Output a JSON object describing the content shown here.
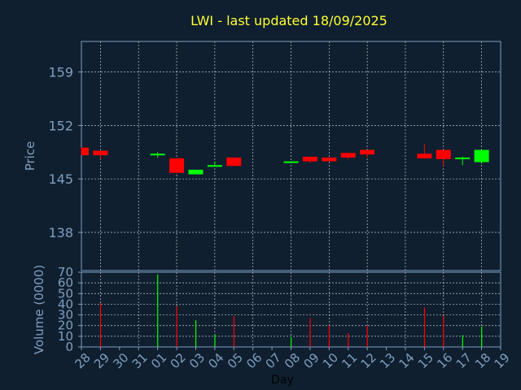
{
  "chart_data": [
    {
      "type": "candlestick",
      "title": "LWI - last updated 18/09/2025",
      "ylabel": "Price",
      "ylim": [
        133,
        163
      ],
      "yticks": [
        138,
        145,
        152,
        159
      ],
      "grid": true,
      "up_color": "#00ff00",
      "down_color": "#ff0000",
      "categories": [
        "28",
        "29",
        "30",
        "31",
        "01",
        "02",
        "03",
        "04",
        "05",
        "06",
        "07",
        "08",
        "09",
        "10",
        "11",
        "12",
        "13",
        "14",
        "15",
        "16",
        "17",
        "18",
        "19"
      ],
      "candles": [
        {
          "x": "28",
          "open": 149.1,
          "close": 148.1,
          "high": 149.1,
          "low": 148.1
        },
        {
          "x": "29",
          "open": 148.7,
          "close": 148.1,
          "high": 148.7,
          "low": 147.6
        },
        {
          "x": "01",
          "open": 148.1,
          "close": 148.3,
          "high": 148.5,
          "low": 147.8
        },
        {
          "x": "02",
          "open": 147.7,
          "close": 145.8,
          "high": 147.7,
          "low": 145.7
        },
        {
          "x": "03",
          "open": 145.6,
          "close": 146.2,
          "high": 146.2,
          "low": 145.6
        },
        {
          "x": "04",
          "open": 146.6,
          "close": 146.8,
          "high": 147.3,
          "low": 146.6
        },
        {
          "x": "05",
          "open": 147.8,
          "close": 146.7,
          "high": 147.8,
          "low": 146.7
        },
        {
          "x": "08",
          "open": 147.1,
          "close": 147.3,
          "high": 147.3,
          "low": 147.1
        },
        {
          "x": "09",
          "open": 147.9,
          "close": 147.3,
          "high": 147.9,
          "low": 147.1
        },
        {
          "x": "10",
          "open": 147.8,
          "close": 147.3,
          "high": 147.8,
          "low": 147.3
        },
        {
          "x": "11",
          "open": 148.4,
          "close": 147.8,
          "high": 148.4,
          "low": 147.6
        },
        {
          "x": "12",
          "open": 148.8,
          "close": 148.2,
          "high": 148.8,
          "low": 147.8
        },
        {
          "x": "15",
          "open": 148.3,
          "close": 147.7,
          "high": 149.6,
          "low": 147.7
        },
        {
          "x": "16",
          "open": 148.8,
          "close": 147.6,
          "high": 148.8,
          "low": 146.7
        },
        {
          "x": "17",
          "open": 147.6,
          "close": 147.8,
          "high": 147.9,
          "low": 146.8
        },
        {
          "x": "18",
          "open": 147.2,
          "close": 148.8,
          "high": 148.8,
          "low": 147.0
        }
      ]
    },
    {
      "type": "bar",
      "ylabel": "Volume (0000)",
      "xlabel": "Day",
      "ylim": [
        0,
        70
      ],
      "yticks": [
        0,
        10,
        20,
        30,
        40,
        50,
        60,
        70
      ],
      "grid": true,
      "categories": [
        "28",
        "29",
        "30",
        "31",
        "01",
        "02",
        "03",
        "04",
        "05",
        "06",
        "07",
        "08",
        "09",
        "10",
        "11",
        "12",
        "13",
        "14",
        "15",
        "16",
        "17",
        "18",
        "19"
      ],
      "bars": [
        {
          "x": "29",
          "value": 41,
          "direction": "down"
        },
        {
          "x": "01",
          "value": 68,
          "direction": "up"
        },
        {
          "x": "02",
          "value": 38,
          "direction": "down"
        },
        {
          "x": "03",
          "value": 25,
          "direction": "up"
        },
        {
          "x": "04",
          "value": 12,
          "direction": "up"
        },
        {
          "x": "05",
          "value": 29,
          "direction": "down"
        },
        {
          "x": "08",
          "value": 9,
          "direction": "up"
        },
        {
          "x": "09",
          "value": 27,
          "direction": "down"
        },
        {
          "x": "10",
          "value": 20,
          "direction": "down"
        },
        {
          "x": "11",
          "value": 13,
          "direction": "down"
        },
        {
          "x": "12",
          "value": 20,
          "direction": "down"
        },
        {
          "x": "15",
          "value": 37,
          "direction": "down"
        },
        {
          "x": "16",
          "value": 29,
          "direction": "down"
        },
        {
          "x": "17",
          "value": 11,
          "direction": "up"
        },
        {
          "x": "18",
          "value": 19,
          "direction": "up"
        }
      ]
    }
  ]
}
